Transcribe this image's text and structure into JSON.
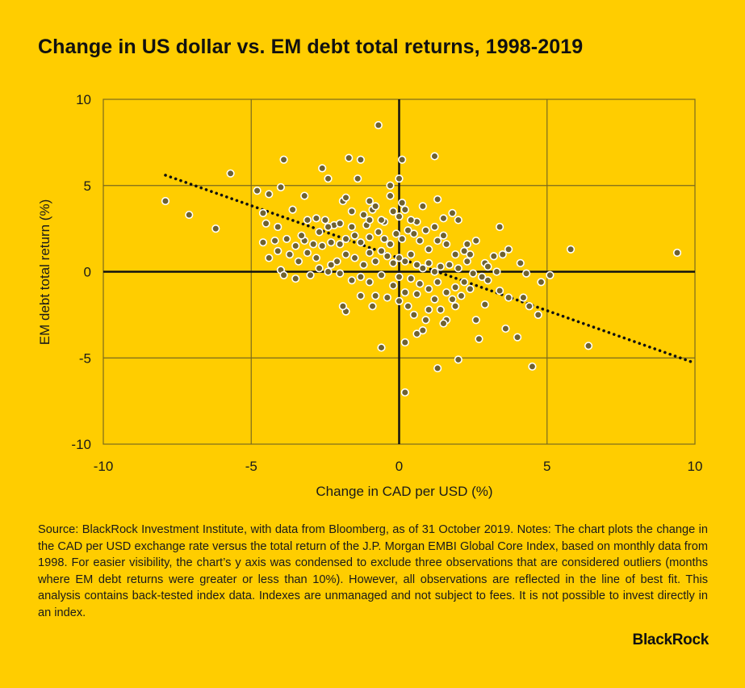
{
  "title": "Change in US dollar vs. EM debt total returns, 1998-2019",
  "footer": "Source: BlackRock Investment Institute, with data from Bloomberg, as of 31 October 2019. Notes: The chart plots the change in the CAD per USD exchange rate versus the total return of the J.P. Morgan EMBI Global Core Index, based on monthly data from 1998. For easier visibility, the chart’s y axis was condensed to exclude three observations that are considered outliers (months where EM debt returns were greater or less than 10%). However, all observations are reflected in the line of best fit. This analysis contains back-tested index data. Indexes are unmanaged and not subject to fees. It is not possible to invest directly in an index.",
  "logo": "BlackRock",
  "colors": {
    "background": "#FFCD00",
    "point": "#6e6130",
    "point_outline": "#ffffff",
    "grid": "#7a6a1e",
    "axis": "#111111",
    "trend": "#111111"
  },
  "chart_data": {
    "type": "scatter",
    "title": "Change in US dollar vs. EM debt total returns, 1998-2019",
    "xlabel": "Change in CAD per USD (%)",
    "ylabel": "EM debt total return (%)",
    "xlim": [
      -10,
      10
    ],
    "ylim": [
      -10,
      10
    ],
    "xticks": [
      -10,
      -5,
      0,
      5,
      10
    ],
    "yticks": [
      10,
      5,
      0,
      -5,
      -10
    ],
    "grid": true,
    "trendline": {
      "x": [
        -7.9,
        10
      ],
      "y": [
        5.6,
        -5.3
      ],
      "style": "dotted"
    },
    "points": [
      [
        -7.9,
        4.1
      ],
      [
        -7.1,
        3.3
      ],
      [
        -6.2,
        2.5
      ],
      [
        -5.7,
        5.7
      ],
      [
        -0.7,
        8.5
      ],
      [
        0.1,
        6.5
      ],
      [
        1.2,
        6.7
      ],
      [
        5.8,
        1.3
      ],
      [
        9.4,
        1.1
      ],
      [
        6.4,
        -4.3
      ],
      [
        4.5,
        -5.5
      ],
      [
        1.3,
        -5.6
      ],
      [
        0.2,
        -7.0
      ],
      [
        -0.6,
        -4.4
      ],
      [
        0.2,
        -4.1
      ],
      [
        2.0,
        -5.1
      ],
      [
        -1.8,
        -2.3
      ],
      [
        -1.9,
        -2.0
      ],
      [
        3.6,
        -3.3
      ],
      [
        4.0,
        -3.8
      ],
      [
        2.7,
        -3.9
      ],
      [
        0.6,
        -3.6
      ],
      [
        0.8,
        -3.4
      ],
      [
        -3.2,
        4.4
      ],
      [
        -3.9,
        6.5
      ],
      [
        -1.7,
        6.6
      ],
      [
        -1.3,
        6.5
      ],
      [
        -4.0,
        4.9
      ],
      [
        -4.8,
        4.7
      ],
      [
        -4.4,
        4.5
      ],
      [
        -2.6,
        6.0
      ],
      [
        -2.4,
        5.4
      ],
      [
        -1.4,
        5.4
      ],
      [
        -0.3,
        5.0
      ],
      [
        0.0,
        5.4
      ],
      [
        1.3,
        4.2
      ],
      [
        3.4,
        2.6
      ],
      [
        4.1,
        0.5
      ],
      [
        4.3,
        -0.1
      ],
      [
        4.8,
        -0.6
      ],
      [
        5.1,
        -0.2
      ],
      [
        4.2,
        -1.5
      ],
      [
        4.4,
        -2.0
      ],
      [
        4.7,
        -2.5
      ],
      [
        3.5,
        1.0
      ],
      [
        3.7,
        1.3
      ],
      [
        3.2,
        0.9
      ],
      [
        2.9,
        0.5
      ],
      [
        2.8,
        -0.3
      ],
      [
        2.9,
        -1.9
      ],
      [
        2.6,
        -2.8
      ],
      [
        1.9,
        -2.0
      ],
      [
        1.6,
        -2.8
      ],
      [
        1.4,
        -2.2
      ],
      [
        1.0,
        -2.2
      ],
      [
        0.3,
        -2.0
      ],
      [
        -4.6,
        3.4
      ],
      [
        -4.5,
        2.8
      ],
      [
        -4.1,
        2.6
      ],
      [
        -3.6,
        3.6
      ],
      [
        -3.1,
        3.0
      ],
      [
        -2.8,
        3.1
      ],
      [
        -2.5,
        3.0
      ],
      [
        -2.2,
        2.7
      ],
      [
        -1.9,
        4.1
      ],
      [
        -1.8,
        4.3
      ],
      [
        -1.6,
        3.5
      ],
      [
        -1.2,
        3.3
      ],
      [
        -1.0,
        4.1
      ],
      [
        -0.9,
        3.6
      ],
      [
        -0.8,
        3.8
      ],
      [
        -0.5,
        2.9
      ],
      [
        -0.2,
        3.5
      ],
      [
        0.0,
        3.2
      ],
      [
        0.2,
        3.6
      ],
      [
        0.6,
        2.9
      ],
      [
        0.9,
        2.4
      ],
      [
        1.2,
        2.6
      ],
      [
        1.5,
        3.1
      ],
      [
        1.8,
        3.4
      ],
      [
        2.0,
        3.0
      ],
      [
        2.3,
        1.6
      ],
      [
        2.6,
        1.8
      ],
      [
        2.2,
        1.2
      ],
      [
        1.9,
        1.0
      ],
      [
        1.6,
        1.6
      ],
      [
        1.3,
        1.8
      ],
      [
        1.0,
        1.3
      ],
      [
        0.7,
        1.8
      ],
      [
        0.5,
        2.2
      ],
      [
        0.3,
        2.4
      ],
      [
        0.1,
        1.9
      ],
      [
        -0.1,
        2.2
      ],
      [
        -0.3,
        1.6
      ],
      [
        -0.5,
        1.9
      ],
      [
        -0.7,
        2.3
      ],
      [
        -1.0,
        2.0
      ],
      [
        -1.3,
        1.7
      ],
      [
        -1.5,
        2.1
      ],
      [
        -1.8,
        1.9
      ],
      [
        -2.0,
        1.6
      ],
      [
        -2.3,
        1.7
      ],
      [
        -2.6,
        1.5
      ],
      [
        -2.9,
        1.6
      ],
      [
        -3.2,
        1.8
      ],
      [
        -3.5,
        1.5
      ],
      [
        -3.8,
        1.9
      ],
      [
        -4.2,
        1.8
      ],
      [
        -4.6,
        1.7
      ],
      [
        -4.4,
        0.8
      ],
      [
        -4.0,
        0.1
      ],
      [
        -3.9,
        -0.2
      ],
      [
        -3.5,
        -0.4
      ],
      [
        -3.0,
        -0.2
      ],
      [
        -2.7,
        0.2
      ],
      [
        -2.4,
        0.0
      ],
      [
        -2.1,
        0.6
      ],
      [
        -1.8,
        1.0
      ],
      [
        -1.5,
        0.8
      ],
      [
        -1.2,
        0.4
      ],
      [
        -1.0,
        1.1
      ],
      [
        -0.8,
        0.6
      ],
      [
        -0.6,
        1.2
      ],
      [
        -0.4,
        0.9
      ],
      [
        -0.2,
        0.5
      ],
      [
        0.0,
        0.8
      ],
      [
        0.2,
        0.6
      ],
      [
        0.4,
        1.0
      ],
      [
        0.6,
        0.4
      ],
      [
        0.8,
        0.2
      ],
      [
        1.0,
        0.5
      ],
      [
        1.2,
        0.0
      ],
      [
        1.4,
        0.3
      ],
      [
        1.7,
        0.4
      ],
      [
        2.0,
        0.2
      ],
      [
        2.3,
        0.6
      ],
      [
        2.5,
        -0.1
      ],
      [
        2.2,
        -0.6
      ],
      [
        1.9,
        -0.9
      ],
      [
        1.6,
        -1.2
      ],
      [
        1.3,
        -0.6
      ],
      [
        1.0,
        -1.0
      ],
      [
        0.7,
        -0.7
      ],
      [
        0.4,
        -0.4
      ],
      [
        0.2,
        -1.2
      ],
      [
        0.0,
        -0.3
      ],
      [
        -0.2,
        -0.8
      ],
      [
        -0.4,
        -1.5
      ],
      [
        -0.6,
        -0.2
      ],
      [
        -0.8,
        -1.4
      ],
      [
        -1.0,
        -0.6
      ],
      [
        -1.3,
        -0.3
      ],
      [
        -1.6,
        -0.5
      ],
      [
        -2.0,
        -0.1
      ],
      [
        -2.3,
        0.4
      ],
      [
        -2.8,
        0.8
      ],
      [
        -3.1,
        1.1
      ],
      [
        -3.4,
        0.6
      ],
      [
        -3.7,
        1.0
      ],
      [
        -4.1,
        1.2
      ],
      [
        -2.7,
        2.3
      ],
      [
        -2.4,
        2.6
      ],
      [
        -2.0,
        2.8
      ],
      [
        -1.6,
        2.6
      ],
      [
        -1.1,
        2.7
      ],
      [
        -0.6,
        3.0
      ],
      [
        0.4,
        3.0
      ],
      [
        0.8,
        3.8
      ],
      [
        1.5,
        2.1
      ],
      [
        2.4,
        1.0
      ],
      [
        3.0,
        0.3
      ],
      [
        3.4,
        -1.1
      ],
      [
        3.0,
        -0.5
      ],
      [
        2.1,
        -1.4
      ],
      [
        1.2,
        -1.6
      ],
      [
        0.6,
        -1.3
      ],
      [
        0.9,
        -2.8
      ],
      [
        1.5,
        -3.0
      ],
      [
        0.5,
        -2.5
      ],
      [
        -0.9,
        -2.0
      ],
      [
        -1.3,
        -1.4
      ],
      [
        0.0,
        -1.7
      ],
      [
        1.8,
        -1.6
      ],
      [
        2.4,
        -1.0
      ],
      [
        3.7,
        -1.5
      ],
      [
        3.3,
        0.0
      ],
      [
        0.1,
        4.0
      ],
      [
        -0.3,
        4.4
      ],
      [
        -1.0,
        3.0
      ],
      [
        -3.3,
        2.1
      ]
    ]
  }
}
